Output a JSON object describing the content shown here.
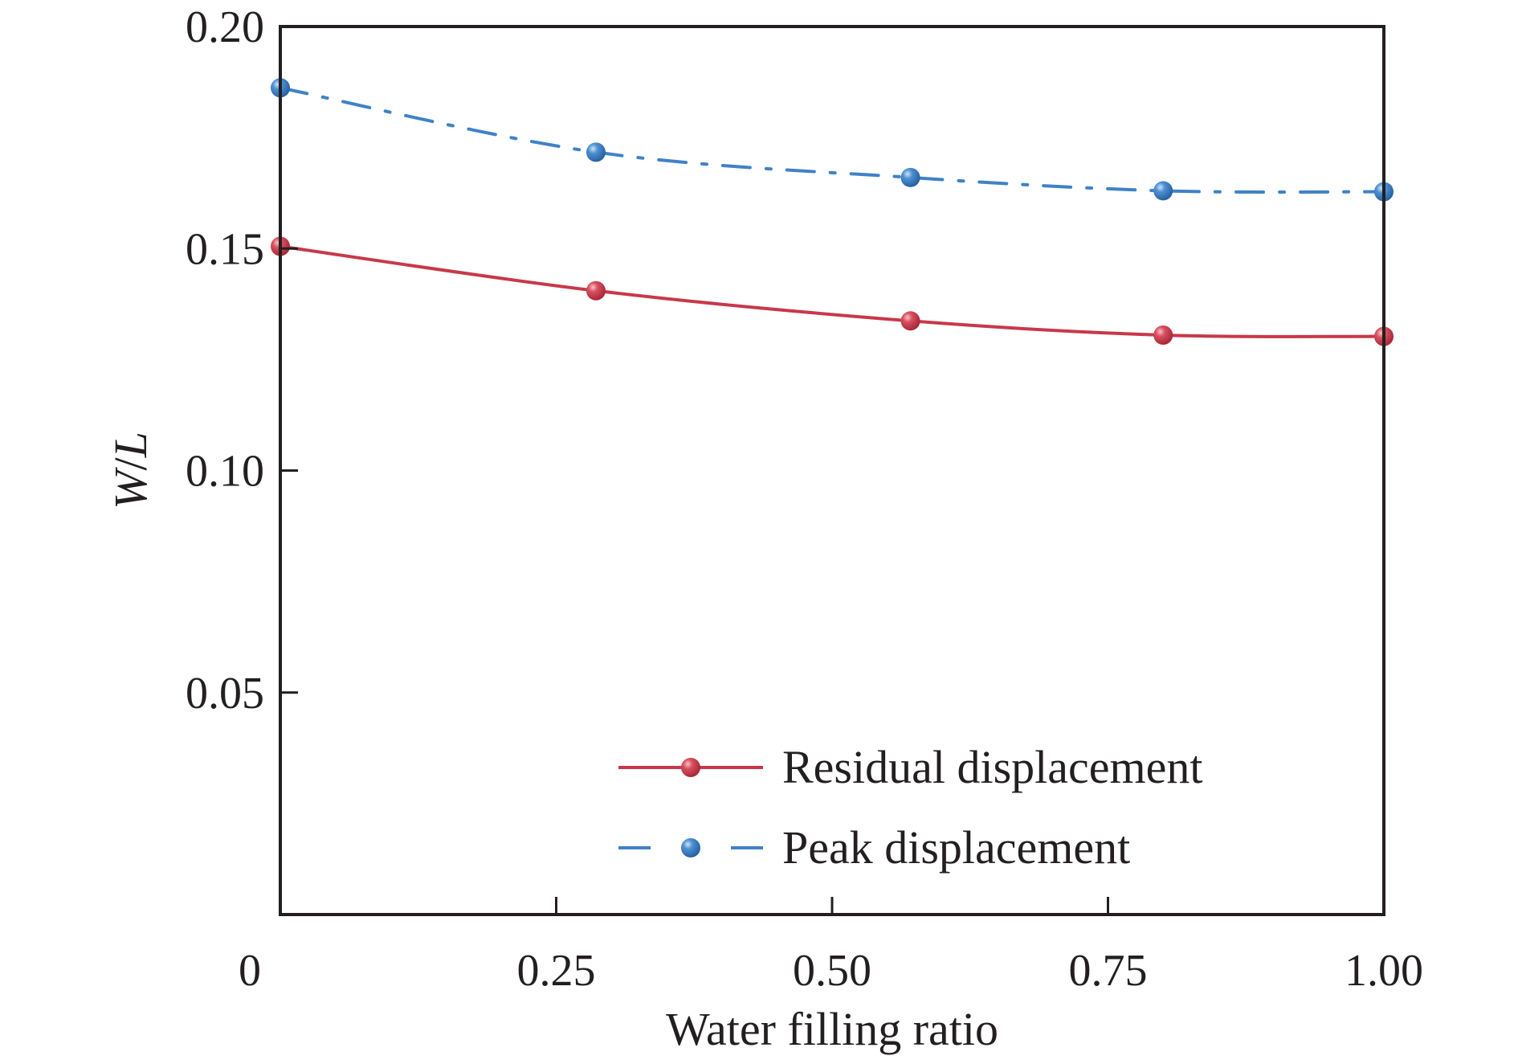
{
  "chart_data": {
    "type": "line",
    "xlabel": "Water filling ratio",
    "ylabel": "W/L",
    "ylabel_parts": {
      "w": "W",
      "slash": "/",
      "l": "L"
    },
    "xlim": [
      0,
      1.0
    ],
    "ylim": [
      0,
      0.2
    ],
    "xticks": [
      {
        "value": 0,
        "label": "0"
      },
      {
        "value": 0.25,
        "label": "0.25"
      },
      {
        "value": 0.5,
        "label": "0.50"
      },
      {
        "value": 0.75,
        "label": "0.75"
      },
      {
        "value": 1.0,
        "label": "1.00"
      }
    ],
    "yticks": [
      {
        "value": 0.05,
        "label": "0.05"
      },
      {
        "value": 0.1,
        "label": "0.10"
      },
      {
        "value": 0.15,
        "label": "0.15"
      },
      {
        "value": 0.2,
        "label": "0.20"
      }
    ],
    "grid": false,
    "legend_position": "bottom-right",
    "series": [
      {
        "name": "Residual displacement",
        "color": "#c8384a",
        "line_style": "solid",
        "x": [
          0.0,
          0.286,
          0.571,
          0.8,
          1.0
        ],
        "y": [
          0.1505,
          0.1405,
          0.1337,
          0.1305,
          0.1302
        ]
      },
      {
        "name": "Peak displacement",
        "color": "#3f82c6",
        "line_style": "dash-dot",
        "x": [
          0.0,
          0.286,
          0.571,
          0.8,
          1.0
        ],
        "y": [
          0.1862,
          0.1717,
          0.166,
          0.163,
          0.1628
        ]
      }
    ]
  }
}
